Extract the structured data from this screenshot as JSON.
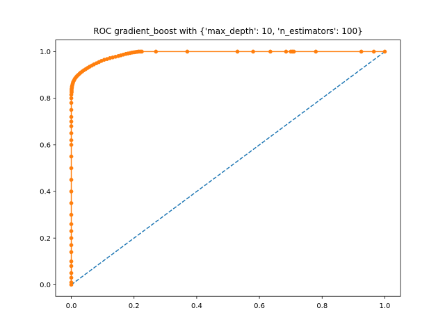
{
  "chart_data": {
    "type": "line",
    "title": "ROC gradient_boost with {'max_depth': 10, 'n_estimators': 100}",
    "xlabel": "",
    "ylabel": "",
    "xlim": [
      -0.05,
      1.05
    ],
    "ylim": [
      -0.05,
      1.05
    ],
    "grid": false,
    "x_ticks": [
      0.0,
      0.2,
      0.4,
      0.6,
      0.8,
      1.0
    ],
    "x_tick_labels": [
      "0.0",
      "0.2",
      "0.4",
      "0.6",
      "0.8",
      "1.0"
    ],
    "y_ticks": [
      0.0,
      0.2,
      0.4,
      0.6,
      0.8,
      1.0
    ],
    "y_tick_labels": [
      "0.0",
      "0.2",
      "0.4",
      "0.6",
      "0.8",
      "1.0"
    ],
    "series": [
      {
        "style": "dashed",
        "color": "#1f77b4",
        "x": [
          0.0,
          1.0
        ],
        "y": [
          0.0,
          1.0
        ]
      },
      {
        "style": "line-with-markers",
        "color": "#ff7f0e",
        "x": [
          0.0,
          0.0,
          0.0,
          0.0,
          0.0,
          0.0,
          0.0,
          0.0,
          0.0,
          0.0,
          0.0,
          0.0,
          0.0,
          0.0,
          0.0,
          0.0,
          0.0,
          0.0,
          0.0,
          0.0,
          0.0,
          0.0,
          0.0,
          0.0,
          0.0,
          0.0,
          0.0,
          0.001,
          0.001,
          0.001,
          0.001,
          0.002,
          0.002,
          0.003,
          0.004,
          0.005,
          0.006,
          0.008,
          0.01,
          0.012,
          0.015,
          0.018,
          0.022,
          0.026,
          0.03,
          0.035,
          0.04,
          0.046,
          0.052,
          0.058,
          0.065,
          0.072,
          0.08,
          0.088,
          0.096,
          0.105,
          0.114,
          0.123,
          0.132,
          0.141,
          0.15,
          0.158,
          0.166,
          0.174,
          0.181,
          0.188,
          0.194,
          0.2,
          0.205,
          0.21,
          0.215,
          0.22,
          0.225,
          0.27,
          0.37,
          0.53,
          0.58,
          0.635,
          0.685,
          0.7,
          0.705,
          0.71,
          0.78,
          0.925,
          0.965,
          1.0
        ],
        "y": [
          0.0,
          0.01,
          0.03,
          0.05,
          0.08,
          0.1,
          0.14,
          0.17,
          0.2,
          0.23,
          0.26,
          0.3,
          0.35,
          0.4,
          0.45,
          0.5,
          0.55,
          0.6,
          0.62,
          0.65,
          0.68,
          0.7,
          0.72,
          0.75,
          0.78,
          0.8,
          0.815,
          0.825,
          0.83,
          0.835,
          0.84,
          0.845,
          0.85,
          0.855,
          0.86,
          0.865,
          0.87,
          0.875,
          0.88,
          0.885,
          0.89,
          0.895,
          0.9,
          0.905,
          0.91,
          0.915,
          0.92,
          0.925,
          0.93,
          0.935,
          0.94,
          0.945,
          0.95,
          0.955,
          0.96,
          0.965,
          0.968,
          0.972,
          0.975,
          0.978,
          0.981,
          0.984,
          0.987,
          0.99,
          0.992,
          0.994,
          0.996,
          0.997,
          0.998,
          0.999,
          1.0,
          1.0,
          1.0,
          1.0,
          1.0,
          1.0,
          1.0,
          1.0,
          1.0,
          1.0,
          1.0,
          1.0,
          1.0,
          1.0,
          1.0,
          1.0
        ]
      }
    ]
  }
}
